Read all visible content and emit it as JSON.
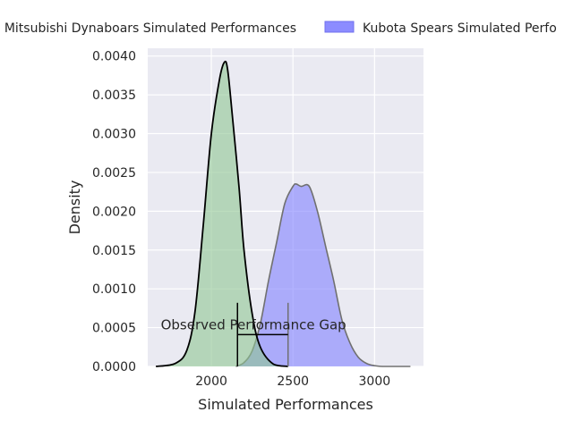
{
  "chart_data": {
    "type": "area",
    "title": "",
    "xlabel": "Simulated Performances",
    "ylabel": "Density",
    "xlim": [
      1610,
      3300
    ],
    "ylim": [
      0,
      0.0041
    ],
    "xticks": [
      2000,
      2500,
      3000
    ],
    "xtick_labels": [
      "2000",
      "2500",
      "3000"
    ],
    "yticks": [
      0,
      0.0005,
      0.001,
      0.0015,
      0.002,
      0.0025,
      0.003,
      0.0035,
      0.004
    ],
    "ytick_labels": [
      "0.0000",
      "0.0005",
      "0.0010",
      "0.0015",
      "0.0020",
      "0.0025",
      "0.0030",
      "0.0035",
      "0.0040"
    ],
    "grid": true,
    "legend_position": "top",
    "series": [
      {
        "name": "Mitsubishi Dynaboars Simulated Performances",
        "legend_label": "Mitsubishi Dynaboars Simulated Performances",
        "fill": "#8fc793",
        "fill_opacity": 0.6,
        "line": "#000000",
        "x": [
          1660,
          1780,
          1850,
          1900,
          1950,
          2000,
          2050,
          2080,
          2100,
          2130,
          2170,
          2200,
          2250,
          2300,
          2380,
          2470
        ],
        "y": [
          0,
          4e-05,
          0.00021,
          0.00071,
          0.00181,
          0.003,
          0.0037,
          0.00392,
          0.00382,
          0.0032,
          0.0023,
          0.0015,
          0.00068,
          0.00025,
          3e-05,
          0
        ]
      },
      {
        "name": "Kubota Spears Simulated Performances",
        "legend_label": "Kubota Spears Simulated Perfo",
        "fill": "#8080ff",
        "fill_opacity": 0.6,
        "line": "#707070",
        "x": [
          2150,
          2200,
          2250,
          2300,
          2350,
          2400,
          2450,
          2500,
          2520,
          2550,
          2600,
          2650,
          2700,
          2750,
          2800,
          2850,
          2900,
          2950,
          3000,
          3050,
          3100,
          3150,
          3220
        ],
        "y": [
          0,
          5e-05,
          0.0002,
          0.00055,
          0.0011,
          0.0016,
          0.0021,
          0.00232,
          0.00235,
          0.00232,
          0.00232,
          0.002,
          0.00155,
          0.0011,
          0.0006,
          0.0003,
          0.00012,
          4e-05,
          1e-05,
          0,
          0,
          0,
          0
        ]
      }
    ],
    "annotation": {
      "text": "Observed Performance Gap",
      "x1": 2160,
      "x2": 2470,
      "bracket_y": 0.00041,
      "vline_top": 0.00082,
      "text_x": 1690,
      "text_y": 0.00048
    }
  }
}
